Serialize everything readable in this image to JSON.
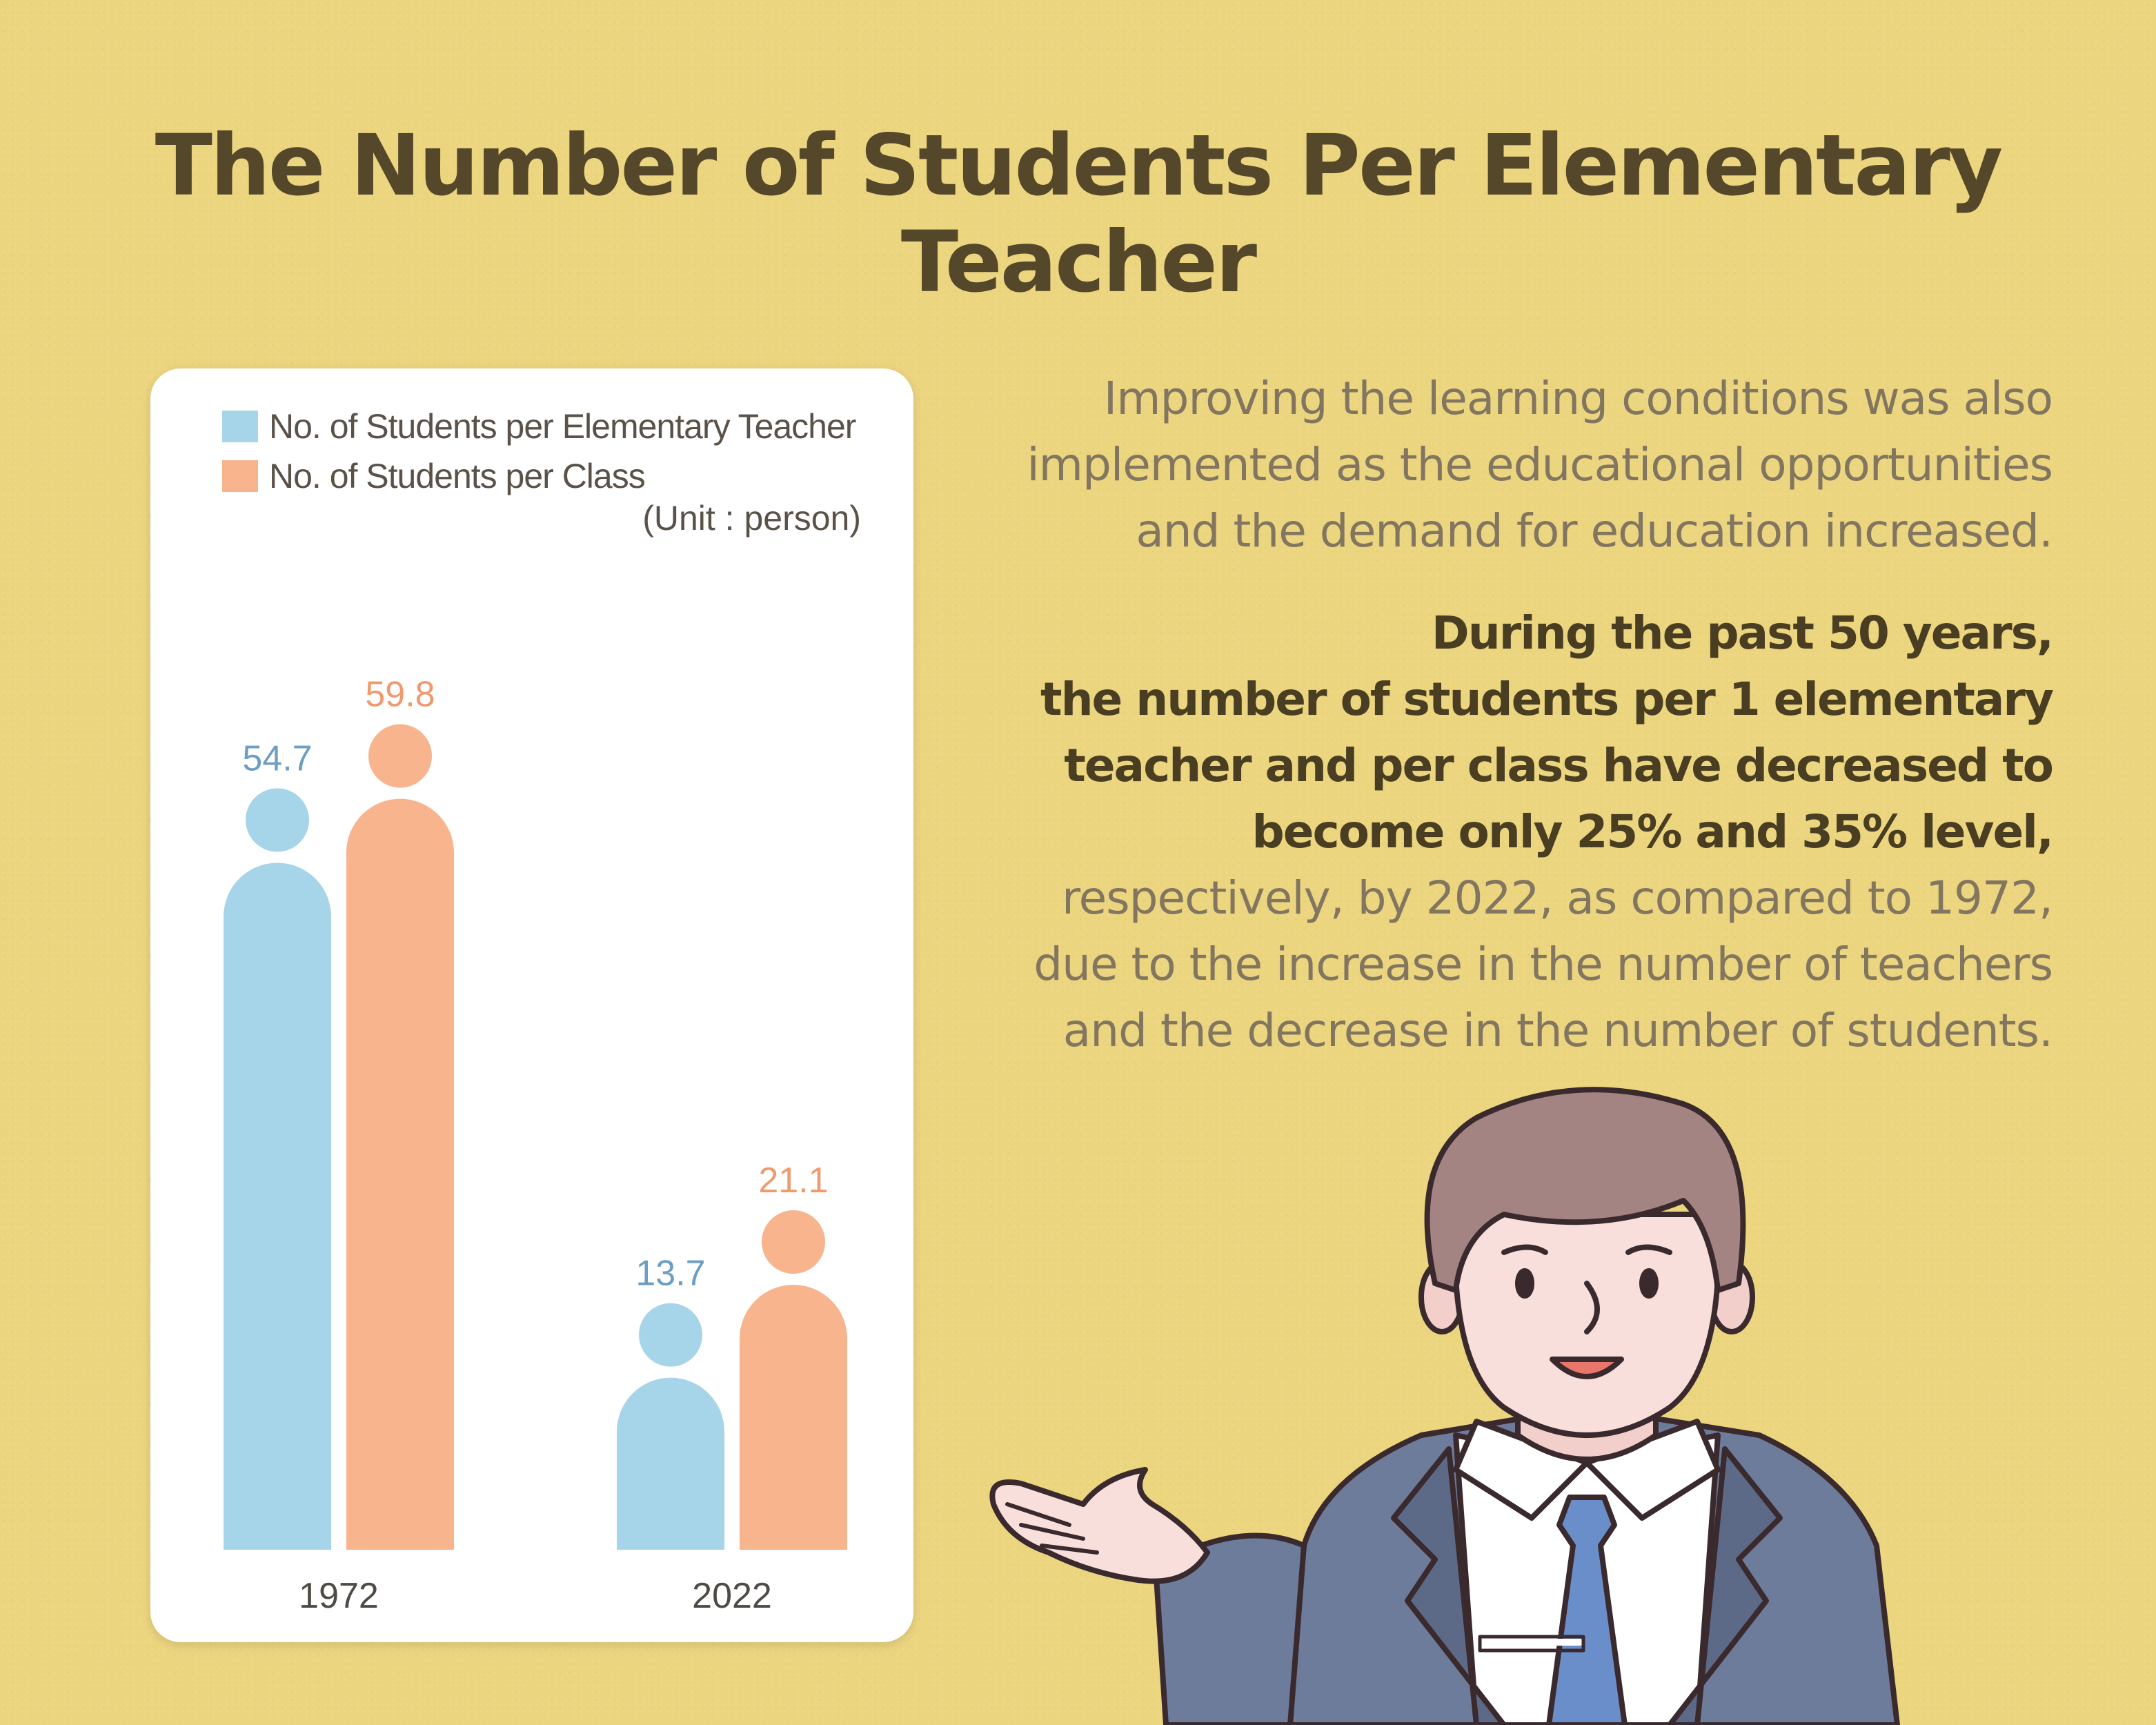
{
  "title": "The Number of Students Per Elementary Teacher",
  "description": {
    "paragraph1": [
      "Improving the learning conditions was also",
      "implemented as the educational opportunities",
      "and the demand for education increased."
    ],
    "paragraph2_bold": [
      "During the past 50 years,",
      "the number of students per 1 elementary",
      "teacher and per class have decreased to",
      "become only 25% and 35% level,"
    ],
    "paragraph2_rest": [
      "respectively, by 2022, as compared to 1972,",
      "due to the increase in the number of teachers",
      "and the decrease in the number of students."
    ]
  },
  "colors": {
    "background": "#ecd57f",
    "teacher_series": "#a6d4e8",
    "class_series": "#f7b48d",
    "teacher_label": "#6c9ec4",
    "class_label": "#ee9a6e"
  },
  "chart_data": {
    "type": "bar",
    "title": "",
    "categories": [
      "1972",
      "2022"
    ],
    "series": [
      {
        "name": "No. of Students per Elementary Teacher",
        "values": [
          54.7,
          13.7
        ],
        "color": "#a6d4e8"
      },
      {
        "name": "No. of Students per Class",
        "values": [
          59.8,
          21.1
        ],
        "color": "#f7b48d"
      }
    ],
    "unit": "(Unit : person)",
    "data_labels": [
      [
        "54.7",
        "13.7"
      ],
      [
        "59.8",
        "21.1"
      ]
    ],
    "xlabel": "",
    "ylabel": "",
    "ylim": [
      0,
      60
    ],
    "grid": false,
    "legend": "top-left",
    "bar_style": "rounded-top bars with a circle head above each bar"
  }
}
